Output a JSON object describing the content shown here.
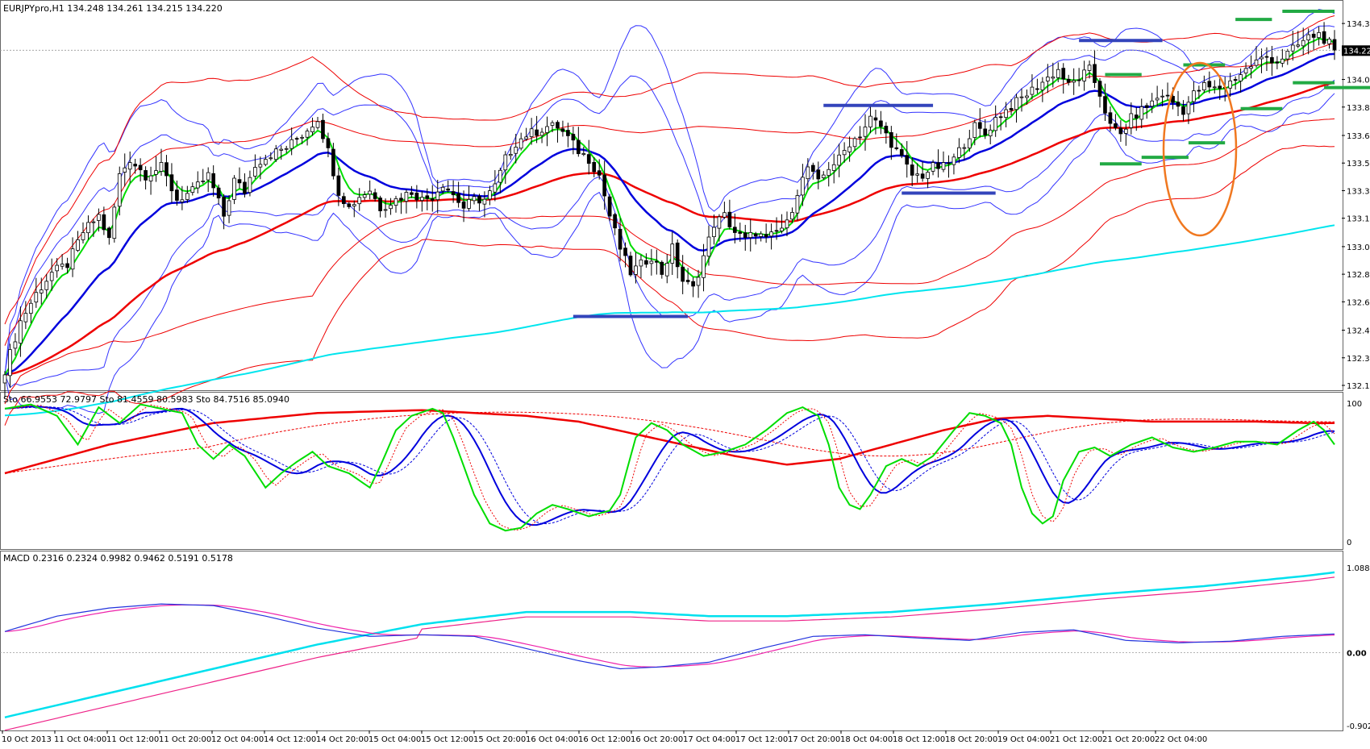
{
  "window": {
    "symbol_line": "EURJPYpro,H1  134.248 134.261 134.215 134.220",
    "stoch_line": "Sto 66.9553 72.9797  Sto 81.4559 80.5983  Sto 84.7516 85.0940",
    "macd_line": "MACD 0.2316 0.2324 0.9982 0.9462 0.5191 0.5178"
  },
  "colors": {
    "candle_up": "#ffffff",
    "candle_down": "#000000",
    "ema_fast": "#00dd00",
    "ema_mid": "#0000dd",
    "ema_slow": "#ee0000",
    "ema_long": "#00e5ee",
    "bb_blue": "#3333ff",
    "bb_red": "#ee0000",
    "level_blue": "#3344bb",
    "level_green": "#22aa44",
    "ellipse": "#f07820",
    "macd_main": "#2233dd",
    "macd_signal": "#ee22aa",
    "macd_long": "#00e0ee",
    "macd_long_signal": "#ee2288",
    "grid": "#999999"
  },
  "chart_data": [
    {
      "type": "candlestick",
      "title": "EURJPYpro,H1",
      "ohlc_last": {
        "open": 134.248,
        "high": 134.261,
        "low": 134.215,
        "close": 134.22
      },
      "current_price_label": "134.220",
      "ylim": [
        132.155,
        134.48
      ],
      "y_ticks": [
        "134.385",
        "134.210",
        "134.040",
        "133.870",
        "133.695",
        "133.525",
        "133.355",
        "133.185",
        "133.010",
        "132.840",
        "132.670",
        "132.495",
        "132.325",
        "132.155"
      ],
      "x_ticks": [
        "10 Oct 2013",
        "11 Oct 04:00",
        "11 Oct 12:00",
        "11 Oct 20:00",
        "12 Oct 04:00",
        "14 Oct 12:00",
        "14 Oct 20:00",
        "15 Oct 04:00",
        "15 Oct 12:00",
        "15 Oct 20:00",
        "16 Oct 04:00",
        "16 Oct 12:00",
        "16 Oct 20:00",
        "17 Oct 04:00",
        "17 Oct 12:00",
        "17 Oct 20:00",
        "18 Oct 04:00",
        "18 Oct 12:00",
        "18 Oct 20:00",
        "19 Oct 04:00",
        "21 Oct 12:00",
        "21 Oct 20:00",
        "22 Oct 04:00"
      ],
      "close_anchors": [
        [
          0,
          132.25
        ],
        [
          3,
          132.55
        ],
        [
          6,
          132.72
        ],
        [
          9,
          132.85
        ],
        [
          12,
          132.9
        ],
        [
          15,
          133.1
        ],
        [
          18,
          133.2
        ],
        [
          20,
          133.05
        ],
        [
          22,
          133.45
        ],
        [
          24,
          133.55
        ],
        [
          27,
          133.45
        ],
        [
          30,
          133.5
        ],
        [
          33,
          133.3
        ],
        [
          36,
          133.35
        ],
        [
          39,
          133.45
        ],
        [
          42,
          133.2
        ],
        [
          44,
          133.42
        ],
        [
          46,
          133.35
        ],
        [
          48,
          133.52
        ],
        [
          51,
          133.58
        ],
        [
          54,
          133.62
        ],
        [
          57,
          133.7
        ],
        [
          60,
          133.8
        ],
        [
          62,
          133.6
        ],
        [
          64,
          133.35
        ],
        [
          66,
          133.25
        ],
        [
          68,
          133.32
        ],
        [
          70,
          133.36
        ],
        [
          72,
          133.25
        ],
        [
          75,
          133.3
        ],
        [
          78,
          133.35
        ],
        [
          80,
          133.3
        ],
        [
          82,
          133.32
        ],
        [
          84,
          133.4
        ],
        [
          86,
          133.33
        ],
        [
          88,
          133.25
        ],
        [
          90,
          133.3
        ],
        [
          92,
          133.3
        ],
        [
          94,
          133.38
        ],
        [
          96,
          133.55
        ],
        [
          98,
          133.65
        ],
        [
          100,
          133.7
        ],
        [
          102,
          133.72
        ],
        [
          104,
          133.75
        ],
        [
          106,
          133.75
        ],
        [
          108,
          133.68
        ],
        [
          110,
          133.6
        ],
        [
          112,
          133.55
        ],
        [
          114,
          133.45
        ],
        [
          116,
          133.2
        ],
        [
          118,
          133.0
        ],
        [
          120,
          132.85
        ],
        [
          122,
          132.9
        ],
        [
          124,
          132.95
        ],
        [
          126,
          132.85
        ],
        [
          128,
          133.0
        ],
        [
          130,
          132.8
        ],
        [
          132,
          132.75
        ],
        [
          134,
          132.95
        ],
        [
          136,
          133.15
        ],
        [
          138,
          133.2
        ],
        [
          140,
          133.1
        ],
        [
          142,
          133.05
        ],
        [
          144,
          133.1
        ],
        [
          146,
          133.05
        ],
        [
          148,
          133.1
        ],
        [
          150,
          133.15
        ],
        [
          152,
          133.35
        ],
        [
          154,
          133.5
        ],
        [
          156,
          133.4
        ],
        [
          158,
          133.5
        ],
        [
          160,
          133.55
        ],
        [
          162,
          133.65
        ],
        [
          164,
          133.7
        ],
        [
          166,
          133.8
        ],
        [
          168,
          133.75
        ],
        [
          170,
          133.65
        ],
        [
          172,
          133.55
        ],
        [
          174,
          133.45
        ],
        [
          176,
          133.45
        ],
        [
          178,
          133.5
        ],
        [
          180,
          133.5
        ],
        [
          182,
          133.55
        ],
        [
          184,
          133.65
        ],
        [
          186,
          133.75
        ],
        [
          188,
          133.7
        ],
        [
          190,
          133.8
        ],
        [
          192,
          133.85
        ],
        [
          194,
          133.9
        ],
        [
          196,
          133.95
        ],
        [
          198,
          134.0
        ],
        [
          200,
          134.05
        ],
        [
          202,
          134.1
        ],
        [
          204,
          134.0
        ],
        [
          206,
          134.05
        ],
        [
          208,
          134.1
        ],
        [
          210,
          133.95
        ],
        [
          212,
          133.75
        ],
        [
          214,
          133.7
        ],
        [
          216,
          133.8
        ],
        [
          218,
          133.85
        ],
        [
          220,
          133.9
        ],
        [
          222,
          133.95
        ],
        [
          224,
          133.9
        ],
        [
          226,
          133.85
        ],
        [
          228,
          133.95
        ],
        [
          230,
          134.0
        ],
        [
          232,
          133.98
        ],
        [
          234,
          134.0
        ],
        [
          236,
          134.05
        ],
        [
          238,
          134.1
        ],
        [
          240,
          134.15
        ],
        [
          242,
          134.18
        ],
        [
          244,
          134.15
        ],
        [
          246,
          134.2
        ],
        [
          248,
          134.25
        ],
        [
          250,
          134.3
        ],
        [
          252,
          134.32
        ],
        [
          254,
          134.26
        ],
        [
          255,
          134.22
        ]
      ],
      "indicators": [
        {
          "name": "EMA fast",
          "color_key": "ema_fast"
        },
        {
          "name": "EMA mid",
          "color_key": "ema_mid"
        },
        {
          "name": "EMA slow",
          "color_key": "ema_slow"
        },
        {
          "name": "EMA long",
          "color_key": "ema_long"
        },
        {
          "name": "Bollinger (blue)",
          "color_key": "bb_blue"
        },
        {
          "name": "Bollinger (red)",
          "color_key": "bb_red"
        }
      ],
      "levels_blue": [
        {
          "price": 134.28,
          "from": 206,
          "to": 222
        },
        {
          "price": 133.88,
          "from": 157,
          "to": 178
        },
        {
          "price": 133.34,
          "from": 172,
          "to": 190
        },
        {
          "price": 132.58,
          "from": 109,
          "to": 131
        }
      ],
      "levels_green": [
        {
          "price": 134.46,
          "from": 245,
          "to": 255
        },
        {
          "price": 134.41,
          "from": 236,
          "to": 243
        },
        {
          "price": 134.13,
          "from": 226,
          "to": 234
        },
        {
          "price": 134.07,
          "from": 211,
          "to": 218
        },
        {
          "price": 134.02,
          "from": 247,
          "to": 255
        },
        {
          "price": 133.99,
          "from": 253,
          "to": 262
        },
        {
          "price": 133.86,
          "from": 237,
          "to": 245
        },
        {
          "price": 133.65,
          "from": 227,
          "to": 234
        },
        {
          "price": 133.56,
          "from": 218,
          "to": 227
        },
        {
          "price": 133.52,
          "from": 210,
          "to": 218
        }
      ]
    },
    {
      "type": "line",
      "title": "Sto",
      "ylim": [
        0,
        100
      ],
      "y_ticks": [
        "100",
        "0"
      ],
      "series": [
        {
          "name": "Sto 66.9553",
          "values_last": 66.9553
        },
        {
          "name": "Sto 72.9797",
          "values_last": 72.9797
        },
        {
          "name": "Sto 81.4559",
          "values_last": 81.4559
        },
        {
          "name": "Sto 80.5983",
          "values_last": 80.5983
        },
        {
          "name": "Sto 84.7516",
          "values_last": 84.7516
        },
        {
          "name": "Sto 85.0940",
          "values_last": 85.094
        }
      ],
      "fast_anchors": [
        [
          0,
          95
        ],
        [
          5,
          98
        ],
        [
          10,
          90
        ],
        [
          14,
          70
        ],
        [
          18,
          96
        ],
        [
          22,
          85
        ],
        [
          26,
          98
        ],
        [
          30,
          95
        ],
        [
          34,
          92
        ],
        [
          37,
          70
        ],
        [
          40,
          60
        ],
        [
          43,
          70
        ],
        [
          46,
          62
        ],
        [
          50,
          40
        ],
        [
          53,
          50
        ],
        [
          56,
          58
        ],
        [
          59,
          65
        ],
        [
          62,
          55
        ],
        [
          66,
          50
        ],
        [
          70,
          40
        ],
        [
          72,
          55
        ],
        [
          75,
          80
        ],
        [
          78,
          90
        ],
        [
          82,
          95
        ],
        [
          84,
          92
        ],
        [
          86,
          75
        ],
        [
          88,
          55
        ],
        [
          90,
          35
        ],
        [
          93,
          15
        ],
        [
          96,
          10
        ],
        [
          99,
          12
        ],
        [
          102,
          22
        ],
        [
          105,
          28
        ],
        [
          108,
          25
        ],
        [
          112,
          20
        ],
        [
          116,
          24
        ],
        [
          118,
          35
        ],
        [
          121,
          75
        ],
        [
          124,
          85
        ],
        [
          127,
          80
        ],
        [
          130,
          70
        ],
        [
          134,
          62
        ],
        [
          138,
          65
        ],
        [
          142,
          70
        ],
        [
          146,
          80
        ],
        [
          150,
          92
        ],
        [
          153,
          96
        ],
        [
          156,
          90
        ],
        [
          158,
          70
        ],
        [
          160,
          40
        ],
        [
          162,
          28
        ],
        [
          164,
          25
        ],
        [
          166,
          35
        ],
        [
          169,
          55
        ],
        [
          172,
          60
        ],
        [
          175,
          55
        ],
        [
          178,
          62
        ],
        [
          182,
          80
        ],
        [
          185,
          92
        ],
        [
          188,
          90
        ],
        [
          191,
          85
        ],
        [
          193,
          70
        ],
        [
          195,
          40
        ],
        [
          197,
          22
        ],
        [
          199,
          15
        ],
        [
          201,
          20
        ],
        [
          203,
          45
        ],
        [
          206,
          65
        ],
        [
          209,
          68
        ],
        [
          212,
          62
        ],
        [
          216,
          70
        ],
        [
          220,
          75
        ],
        [
          224,
          68
        ],
        [
          228,
          65
        ],
        [
          232,
          68
        ],
        [
          236,
          72
        ],
        [
          240,
          72
        ],
        [
          244,
          70
        ],
        [
          248,
          80
        ],
        [
          251,
          86
        ],
        [
          253,
          80
        ],
        [
          255,
          70
        ]
      ],
      "slow_anchors": [
        [
          0,
          50
        ],
        [
          20,
          70
        ],
        [
          40,
          85
        ],
        [
          60,
          92
        ],
        [
          80,
          94
        ],
        [
          100,
          90
        ],
        [
          110,
          86
        ],
        [
          120,
          78
        ],
        [
          130,
          70
        ],
        [
          140,
          62
        ],
        [
          150,
          56
        ],
        [
          160,
          60
        ],
        [
          170,
          70
        ],
        [
          180,
          80
        ],
        [
          190,
          88
        ],
        [
          200,
          90
        ],
        [
          210,
          88
        ],
        [
          220,
          86
        ],
        [
          230,
          86
        ],
        [
          240,
          86
        ],
        [
          250,
          85
        ],
        [
          255,
          85
        ]
      ]
    },
    {
      "type": "line",
      "title": "MACD",
      "ylim": [
        -0.902,
        1.0886
      ],
      "y_ticks": [
        "1.0886",
        "0.00",
        "-0.902"
      ],
      "series": [
        {
          "name": "MACD 0.2316",
          "values_last": 0.2316
        },
        {
          "name": "MACD 0.2324",
          "values_last": 0.2324
        },
        {
          "name": "MACD 0.9982",
          "values_last": 0.9982
        },
        {
          "name": "MACD 0.9462",
          "values_last": 0.9462
        },
        {
          "name": "MACD 0.5191",
          "values_last": 0.5191
        },
        {
          "name": "MACD 0.5178",
          "values_last": 0.5178
        }
      ],
      "short_anchors": [
        [
          0,
          0.26
        ],
        [
          10,
          0.45
        ],
        [
          20,
          0.55
        ],
        [
          30,
          0.6
        ],
        [
          40,
          0.58
        ],
        [
          50,
          0.45
        ],
        [
          60,
          0.3
        ],
        [
          70,
          0.2
        ],
        [
          80,
          0.22
        ],
        [
          90,
          0.2
        ],
        [
          100,
          0.05
        ],
        [
          110,
          -0.1
        ],
        [
          118,
          -0.2
        ],
        [
          125,
          -0.18
        ],
        [
          135,
          -0.12
        ],
        [
          145,
          0.05
        ],
        [
          155,
          0.2
        ],
        [
          165,
          0.22
        ],
        [
          175,
          0.18
        ],
        [
          185,
          0.15
        ],
        [
          195,
          0.25
        ],
        [
          205,
          0.28
        ],
        [
          215,
          0.15
        ],
        [
          225,
          0.12
        ],
        [
          235,
          0.14
        ],
        [
          245,
          0.2
        ],
        [
          255,
          0.23
        ]
      ],
      "long_anchors": [
        [
          0,
          -0.8
        ],
        [
          20,
          -0.5
        ],
        [
          40,
          -0.2
        ],
        [
          60,
          0.1
        ],
        [
          80,
          0.35
        ],
        [
          100,
          0.5
        ],
        [
          120,
          0.5
        ],
        [
          135,
          0.45
        ],
        [
          150,
          0.45
        ],
        [
          170,
          0.5
        ],
        [
          190,
          0.6
        ],
        [
          210,
          0.72
        ],
        [
          230,
          0.82
        ],
        [
          250,
          0.95
        ],
        [
          255,
          0.99
        ]
      ],
      "current_value_label": "0.00"
    }
  ]
}
